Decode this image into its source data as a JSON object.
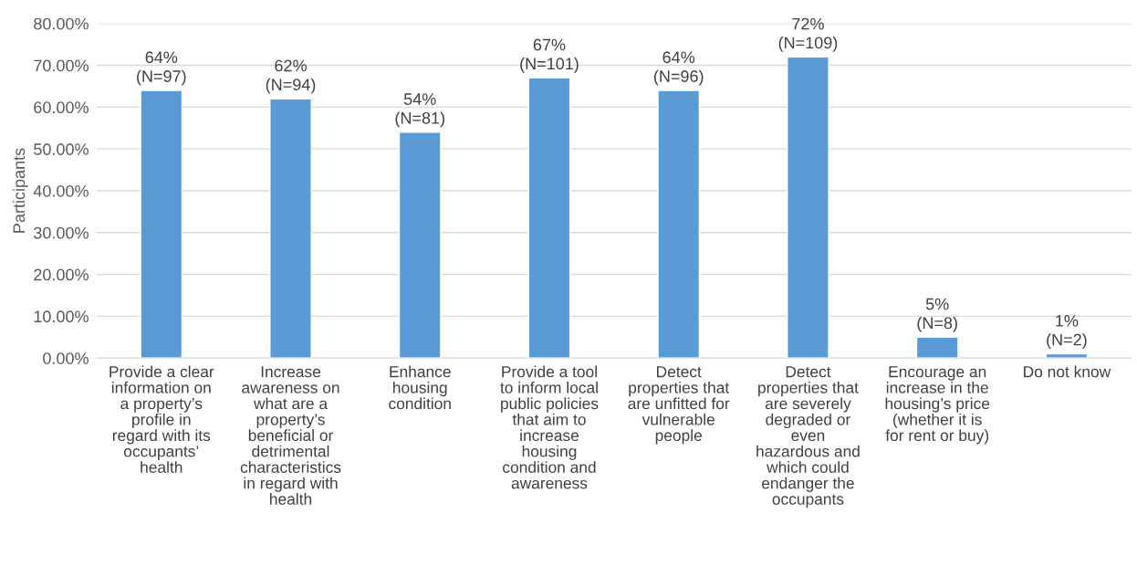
{
  "chart_data": {
    "type": "bar",
    "ylabel": "Participants",
    "categories": [
      "Provide a clear\ninformation on\na property’s\nprofile in\nregard with its\noccupants’\nhealth",
      "Increase\nawareness on\nwhat are a\nproperty’s\nbeneficial or\ndetrimental\ncharacteristics\nin regard with\nhealth",
      "Enhance\nhousing\ncondition",
      "Provide a tool\nto inform local\npublic policies\nthat aim to\nincrease\nhousing\ncondition and\nawareness",
      "Detect\nproperties that\nare unfitted for\nvulnerable\npeople",
      "Detect\nproperties that\nare severely\ndegraded or\neven\nhazardous and\nwhich could\nendanger the\noccupants",
      "Encourage an\nincrease in the\nhousing’s price\n(whether it is\nfor rent or buy)",
      "Do not know"
    ],
    "values": [
      64,
      62,
      54,
      67,
      64,
      72,
      5,
      1
    ],
    "value_labels": [
      "64%\n(N=97)",
      "62%\n(N=94)",
      "54%\n(N=81)",
      "67%\n(N=101)",
      "64%\n(N=96)",
      "72%\n(N=109)",
      "5%\n(N=8)",
      "1%\n(N=2)"
    ],
    "color": "#5b9bd5",
    "ylim": [
      0,
      80
    ],
    "yticks": [
      {
        "value": 0,
        "label": "0.00%"
      },
      {
        "value": 10,
        "label": "10.00%"
      },
      {
        "value": 20,
        "label": "20.00%"
      },
      {
        "value": 30,
        "label": "30.00%"
      },
      {
        "value": 40,
        "label": "40.00%"
      },
      {
        "value": 50,
        "label": "50.00%"
      },
      {
        "value": 60,
        "label": "60.00%"
      },
      {
        "value": 70,
        "label": "70.00%"
      },
      {
        "value": 80,
        "label": "80.00%"
      }
    ],
    "grid": "y",
    "legend": false
  }
}
